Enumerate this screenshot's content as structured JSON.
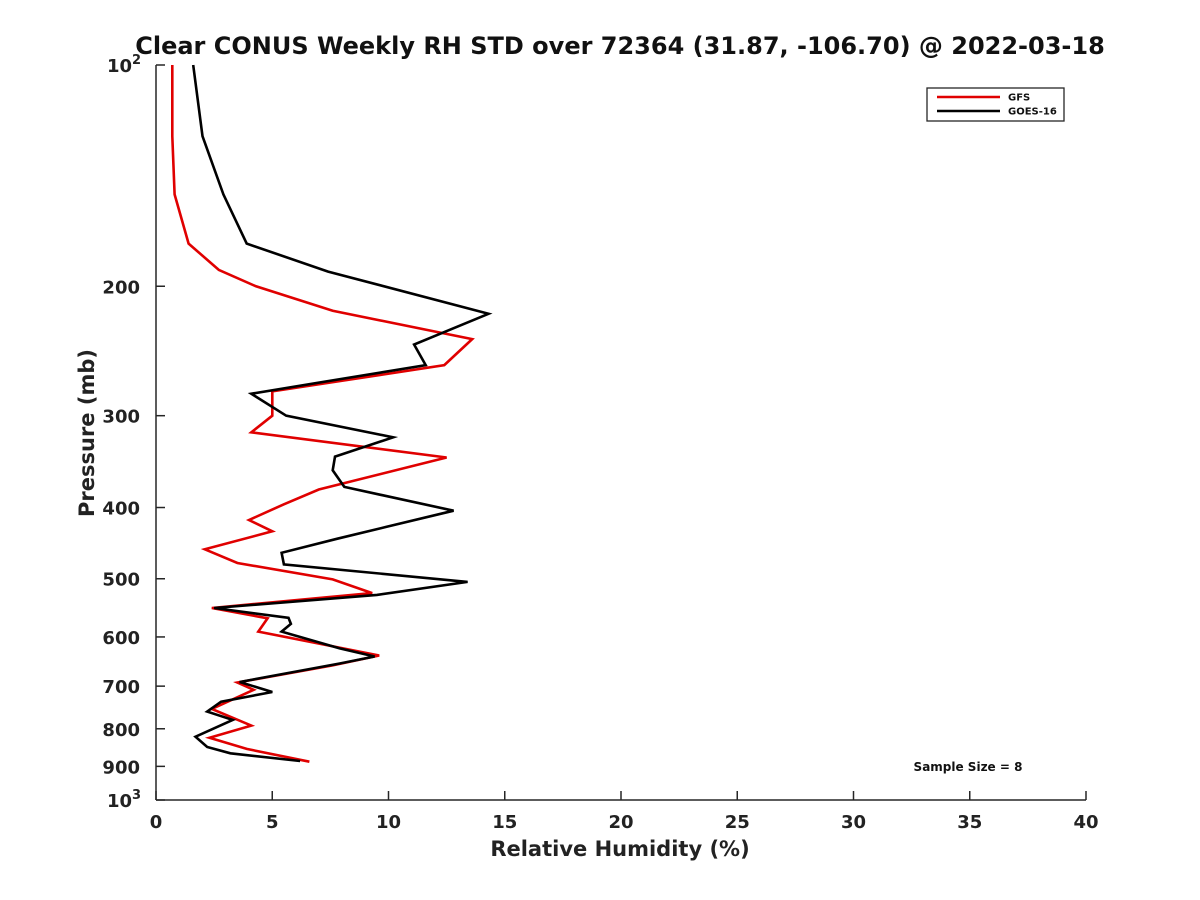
{
  "chart_data": {
    "type": "line",
    "title": "Clear CONUS Weekly RH STD over 72364 (31.87, -106.70) @ 2022-03-18",
    "xlabel": "Relative Humidity (%)",
    "ylabel": "Pressure (mb)",
    "xlim": [
      0,
      40
    ],
    "ylim": [
      100,
      1000
    ],
    "y_scale": "log",
    "y_reversed": true,
    "x_ticks": [
      "0",
      "5",
      "10",
      "15",
      "20",
      "25",
      "30",
      "35",
      "40"
    ],
    "y_ticks": [
      {
        "value": 100,
        "label": "10",
        "sup": "2"
      },
      {
        "value": 200,
        "label": "200",
        "sup": ""
      },
      {
        "value": 300,
        "label": "300",
        "sup": ""
      },
      {
        "value": 400,
        "label": "400",
        "sup": ""
      },
      {
        "value": 500,
        "label": "500",
        "sup": ""
      },
      {
        "value": 600,
        "label": "600",
        "sup": ""
      },
      {
        "value": 700,
        "label": "700",
        "sup": ""
      },
      {
        "value": 800,
        "label": "800",
        "sup": ""
      },
      {
        "value": 900,
        "label": "900",
        "sup": ""
      },
      {
        "value": 1000,
        "label": "10",
        "sup": "3"
      }
    ],
    "legend_position": "top-right",
    "grid": false,
    "annotation": "Sample Size = 8",
    "series": [
      {
        "name": "GFS",
        "color": "#e00000",
        "points": [
          [
            0.7,
            100
          ],
          [
            0.7,
            125
          ],
          [
            0.8,
            150
          ],
          [
            1.4,
            175
          ],
          [
            2.7,
            190
          ],
          [
            4.3,
            200
          ],
          [
            7.6,
            216
          ],
          [
            13.6,
            236
          ],
          [
            12.4,
            256
          ],
          [
            5.0,
            278
          ],
          [
            5.0,
            300
          ],
          [
            4.1,
            316
          ],
          [
            12.5,
            342
          ],
          [
            7.0,
            378
          ],
          [
            5.5,
            396
          ],
          [
            4.0,
            416
          ],
          [
            5.0,
            431
          ],
          [
            2.1,
            456
          ],
          [
            3.5,
            476
          ],
          [
            7.6,
            501
          ],
          [
            9.3,
            523
          ],
          [
            2.4,
            548
          ],
          [
            4.8,
            566
          ],
          [
            4.4,
            590
          ],
          [
            9.6,
            636
          ],
          [
            7.6,
            656
          ],
          [
            3.5,
            692
          ],
          [
            4.2,
            708
          ],
          [
            2.4,
            752
          ],
          [
            4.1,
            792
          ],
          [
            2.3,
            823
          ],
          [
            3.9,
            852
          ],
          [
            6.6,
            887
          ]
        ]
      },
      {
        "name": "GOES-16",
        "color": "#000000",
        "points": [
          [
            1.6,
            100
          ],
          [
            2.0,
            125
          ],
          [
            2.9,
            150
          ],
          [
            3.9,
            175
          ],
          [
            7.4,
            191
          ],
          [
            14.3,
            218
          ],
          [
            11.1,
            240
          ],
          [
            11.6,
            256
          ],
          [
            4.1,
            280
          ],
          [
            5.6,
            300
          ],
          [
            10.2,
            321
          ],
          [
            7.7,
            341
          ],
          [
            7.6,
            356
          ],
          [
            8.1,
            375
          ],
          [
            12.8,
            404
          ],
          [
            9.9,
            425
          ],
          [
            7.8,
            441
          ],
          [
            5.4,
            461
          ],
          [
            5.5,
            478
          ],
          [
            13.4,
            505
          ],
          [
            9.5,
            526
          ],
          [
            2.5,
            548
          ],
          [
            5.7,
            565
          ],
          [
            5.8,
            576
          ],
          [
            5.4,
            590
          ],
          [
            7.9,
            622
          ],
          [
            9.4,
            638
          ],
          [
            7.9,
            652
          ],
          [
            3.6,
            691
          ],
          [
            5.0,
            713
          ],
          [
            2.8,
            735
          ],
          [
            2.2,
            758
          ],
          [
            3.3,
            778
          ],
          [
            1.7,
            820
          ],
          [
            2.2,
            847
          ],
          [
            3.2,
            864
          ],
          [
            6.2,
            885
          ]
        ]
      }
    ]
  }
}
